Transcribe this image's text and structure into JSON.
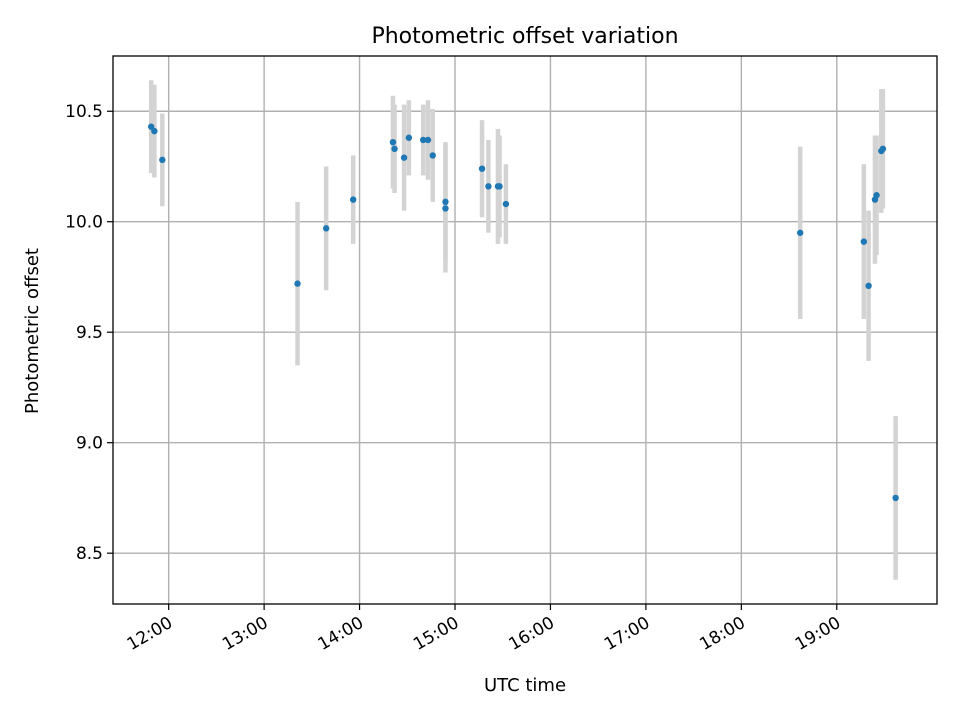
{
  "chart_data": {
    "type": "scatter",
    "title": "Photometric offset variation",
    "xlabel": "UTC time",
    "ylabel": "Photometric offset",
    "grid": true,
    "xlim": [
      "11:25",
      "20:03"
    ],
    "ylim": [
      8.27,
      10.75
    ],
    "x_ticks": [
      "12:00",
      "13:00",
      "14:00",
      "15:00",
      "16:00",
      "17:00",
      "18:00",
      "19:00"
    ],
    "y_ticks": [
      "8.5",
      "9.0",
      "9.5",
      "10.0",
      "10.5"
    ],
    "marker_color": "#1f77b4",
    "errorbar_color": "#d3d3d3",
    "series": [
      {
        "points": [
          {
            "x": "11:49",
            "y": 10.43,
            "err": 0.21
          },
          {
            "x": "11:51",
            "y": 10.41,
            "err": 0.21
          },
          {
            "x": "11:56",
            "y": 10.28,
            "err": 0.21
          },
          {
            "x": "13:21",
            "y": 9.72,
            "err": 0.37
          },
          {
            "x": "13:39",
            "y": 9.97,
            "err": 0.28
          },
          {
            "x": "13:56",
            "y": 10.1,
            "err": 0.2
          },
          {
            "x": "14:21",
            "y": 10.36,
            "err": 0.21
          },
          {
            "x": "14:22",
            "y": 10.33,
            "err": 0.2
          },
          {
            "x": "14:28",
            "y": 10.29,
            "err": 0.24
          },
          {
            "x": "14:31",
            "y": 10.38,
            "err": 0.17
          },
          {
            "x": "14:40",
            "y": 10.37,
            "err": 0.16
          },
          {
            "x": "14:43",
            "y": 10.37,
            "err": 0.18
          },
          {
            "x": "14:46",
            "y": 10.3,
            "err": 0.21
          },
          {
            "x": "14:54",
            "y": 10.09,
            "err": 0.27
          },
          {
            "x": "14:54",
            "y": 10.06,
            "err": 0.29
          },
          {
            "x": "15:17",
            "y": 10.24,
            "err": 0.22
          },
          {
            "x": "15:21",
            "y": 10.16,
            "err": 0.21
          },
          {
            "x": "15:27",
            "y": 10.16,
            "err": 0.26
          },
          {
            "x": "15:28",
            "y": 10.16,
            "err": 0.23
          },
          {
            "x": "15:32",
            "y": 10.08,
            "err": 0.18
          },
          {
            "x": "18:37",
            "y": 9.95,
            "err": 0.39
          },
          {
            "x": "19:17",
            "y": 9.91,
            "err": 0.35
          },
          {
            "x": "19:20",
            "y": 9.71,
            "err": 0.34
          },
          {
            "x": "19:24",
            "y": 10.1,
            "err": 0.29
          },
          {
            "x": "19:25",
            "y": 10.12,
            "err": 0.27
          },
          {
            "x": "19:28",
            "y": 10.32,
            "err": 0.28
          },
          {
            "x": "19:29",
            "y": 10.33,
            "err": 0.27
          },
          {
            "x": "19:37",
            "y": 8.75,
            "err": 0.37
          }
        ]
      }
    ]
  }
}
